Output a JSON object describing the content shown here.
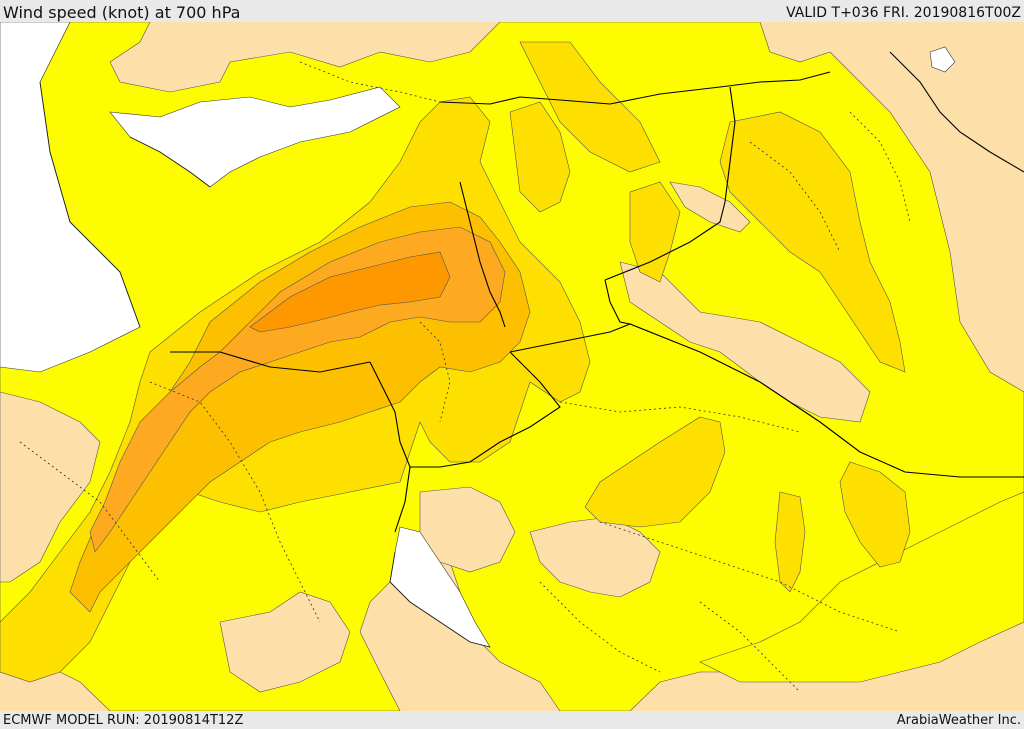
{
  "header": {
    "title": "Wind speed (knot) at 700 hPa",
    "valid_time": "VALID T+036 FRI. 20190816T00Z"
  },
  "footer": {
    "model_run": "ECMWF MODEL RUN: 20190814T12Z",
    "credit": "ArabiaWeather Inc."
  },
  "colors": {
    "land_low": "#fde0a9",
    "sea": "#ffffff",
    "band_1": "#fdfd00",
    "band_2": "#fde000",
    "band_3": "#fdc000",
    "band_4": "#fdaa20",
    "band_5": "#fd9800",
    "border": "#000000"
  }
}
